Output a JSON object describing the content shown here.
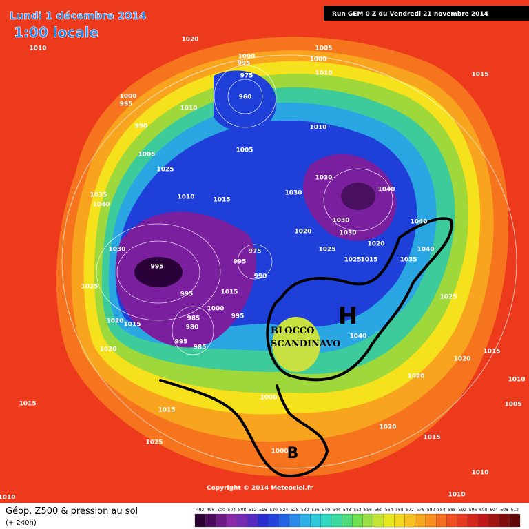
{
  "header": {
    "date": "Lundi 1 décembre 2014",
    "time": "1:00 locale",
    "run": "Run GEM 0 Z du Vendredi 21 novembre 2014"
  },
  "map": {
    "isobar_labels": [
      "1010",
      "1020",
      "1005",
      "1000",
      "1010",
      "1015",
      "1000",
      "995",
      "975",
      "960",
      "1000",
      "995",
      "990",
      "1010",
      "1010",
      "1005",
      "1025",
      "1005",
      "1035",
      "1040",
      "1010",
      "1015",
      "1030",
      "1030",
      "1040",
      "1040",
      "1030",
      "1020",
      "1030",
      "1025",
      "1020",
      "1040",
      "1035",
      "1025",
      "1015",
      "1030",
      "995",
      "975",
      "995",
      "990",
      "1025",
      "995",
      "1015",
      "1000",
      "995",
      "1020",
      "1015",
      "985",
      "980",
      "995",
      "985",
      "1020",
      "1040",
      "1025",
      "1020",
      "1020",
      "1015",
      "1010",
      "1015",
      "1015",
      "1000",
      "1025",
      "1000",
      "1020",
      "1015",
      "1010",
      "1005",
      "1010",
      "1010"
    ],
    "annotations": {
      "high": "H",
      "low": "B",
      "block": [
        "BLOCCO",
        "SCANDINAVO"
      ]
    }
  },
  "footer": {
    "field": "Géop. Z500 & pression au sol",
    "lead": "(+ 240h)",
    "copyright": "Copyright © 2014 Meteociel.fr",
    "scale": [
      492,
      496,
      500,
      504,
      508,
      512,
      516,
      520,
      524,
      528,
      532,
      536,
      540,
      544,
      548,
      552,
      556,
      560,
      564,
      568,
      572,
      576,
      580,
      584,
      588,
      592,
      596,
      600,
      604,
      608,
      612
    ]
  }
}
